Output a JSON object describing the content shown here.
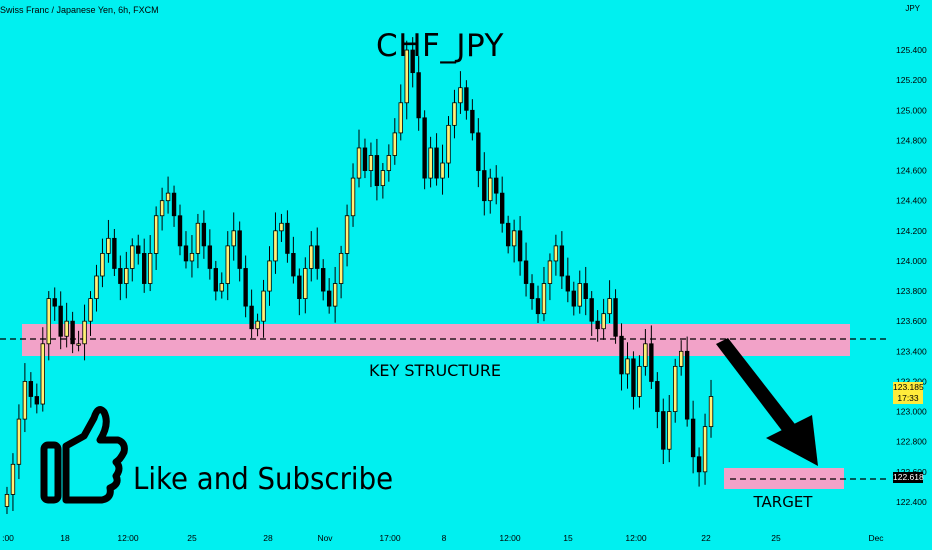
{
  "header": {
    "symbol_title": "Swiss Franc / Japanese Yen, 6h, FXCM",
    "big_title": "CHF_JPY",
    "currency": "JPY"
  },
  "annotations": {
    "key_structure": "KEY STRUCTURE",
    "target": "TARGET",
    "call_to_action": "Like and Subscribe"
  },
  "price_tags": {
    "live_price": "123.185",
    "countdown": "17:33",
    "target_price": "122.618"
  },
  "colors": {
    "background": "#00F0F0",
    "candle_bull": "#FFF176",
    "candle_bear": "#000000",
    "zone": "#F2A2C8",
    "price_tag_live": "#FFEB3B"
  },
  "chart_data": {
    "type": "candlestick",
    "title": "CHF_JPY",
    "y_axis_ticks": [
      "125.400",
      "125.200",
      "125.000",
      "124.800",
      "124.600",
      "124.400",
      "124.200",
      "124.000",
      "123.800",
      "123.600",
      "123.400",
      "123.200",
      "123.000",
      "122.800",
      "122.600",
      "122.400"
    ],
    "y_range": [
      122.32,
      125.48
    ],
    "x_axis_ticks": [
      ":00",
      "18",
      "12:00",
      "25",
      "28",
      "Nov",
      "17:00",
      "8",
      "12:00",
      "15",
      "12:00",
      "22",
      "25",
      "Dec"
    ],
    "zones": [
      {
        "name": "KEY STRUCTURE",
        "low": 123.39,
        "high": 123.6,
        "level": 123.49
      },
      {
        "name": "TARGET",
        "low": 122.56,
        "high": 122.7,
        "level": 122.618
      }
    ],
    "projection": {
      "from_price": 123.49,
      "to_price": 122.66,
      "direction": "down"
    },
    "closes": [
      122.45,
      122.65,
      122.95,
      123.2,
      123.1,
      123.05,
      123.45,
      123.75,
      123.7,
      123.5,
      123.6,
      123.45,
      123.45,
      123.6,
      123.75,
      123.9,
      124.05,
      124.15,
      123.95,
      123.85,
      123.95,
      124.1,
      124.05,
      123.85,
      124.05,
      124.3,
      124.4,
      124.45,
      124.3,
      124.1,
      124.0,
      124.05,
      124.25,
      124.1,
      123.95,
      123.8,
      123.85,
      124.1,
      124.2,
      123.95,
      123.7,
      123.55,
      123.6,
      123.8,
      124.0,
      124.2,
      124.25,
      124.05,
      123.9,
      123.75,
      123.95,
      124.1,
      123.95,
      123.8,
      123.7,
      123.85,
      124.05,
      124.3,
      124.55,
      124.75,
      124.6,
      124.7,
      124.5,
      124.6,
      124.7,
      124.85,
      125.05,
      125.4,
      125.25,
      124.95,
      124.55,
      124.75,
      124.55,
      124.65,
      124.9,
      125.05,
      125.15,
      125.0,
      124.85,
      124.6,
      124.4,
      124.55,
      124.45,
      124.25,
      124.1,
      124.2,
      124.0,
      123.85,
      123.75,
      123.65,
      123.85,
      124.0,
      124.1,
      123.9,
      123.8,
      123.7,
      123.85,
      123.75,
      123.6,
      123.55,
      123.65,
      123.75,
      123.5,
      123.25,
      123.35,
      123.1,
      123.3,
      123.45,
      123.2,
      123.0,
      122.75,
      123.0,
      123.3,
      123.4,
      122.95,
      122.7,
      122.6,
      122.9,
      123.1
    ]
  }
}
